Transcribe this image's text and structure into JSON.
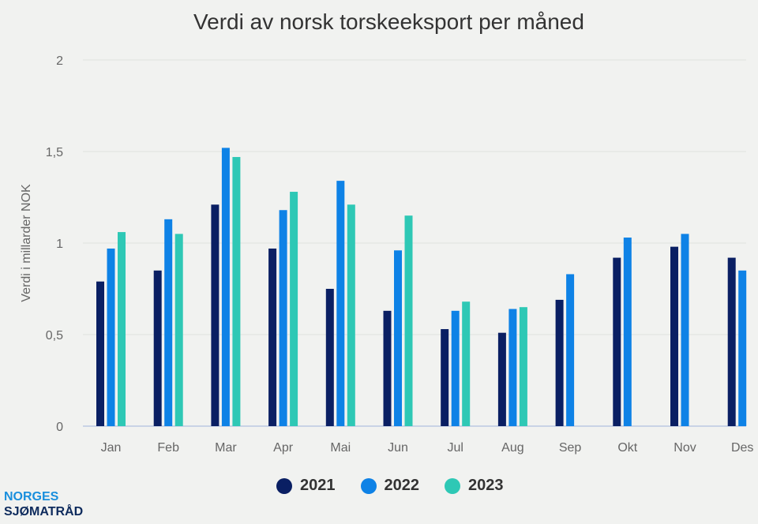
{
  "chart_data": {
    "type": "bar",
    "title": "Verdi av norsk torskeeksport per måned",
    "ylabel": "Verdi i millarder NOK",
    "xlabel": "",
    "ylim": [
      0,
      2
    ],
    "yticks": [
      {
        "v": 0,
        "label": "0"
      },
      {
        "v": 0.5,
        "label": "0,5"
      },
      {
        "v": 1,
        "label": "1"
      },
      {
        "v": 1.5,
        "label": "1,5"
      },
      {
        "v": 2,
        "label": "2"
      }
    ],
    "grid": true,
    "legend_position": "bottom",
    "categories": [
      "Jan",
      "Feb",
      "Mar",
      "Apr",
      "Mai",
      "Jun",
      "Jul",
      "Aug",
      "Sep",
      "Okt",
      "Nov",
      "Des"
    ],
    "series": [
      {
        "name": "2021",
        "color": "#0a1f63",
        "values": [
          0.79,
          0.85,
          1.21,
          0.97,
          0.75,
          0.63,
          0.53,
          0.51,
          0.69,
          0.92,
          0.98,
          0.92
        ]
      },
      {
        "name": "2022",
        "color": "#0e82e6",
        "values": [
          0.97,
          1.13,
          1.52,
          1.18,
          1.34,
          0.96,
          0.63,
          0.64,
          0.83,
          1.03,
          1.05,
          0.85
        ]
      },
      {
        "name": "2023",
        "color": "#2ec8b5",
        "values": [
          1.06,
          1.05,
          1.47,
          1.28,
          1.21,
          1.15,
          0.68,
          0.65,
          null,
          null,
          null,
          null
        ]
      }
    ]
  },
  "logo": {
    "line1": "NORGES",
    "line2": "SJØMATRÅD"
  }
}
